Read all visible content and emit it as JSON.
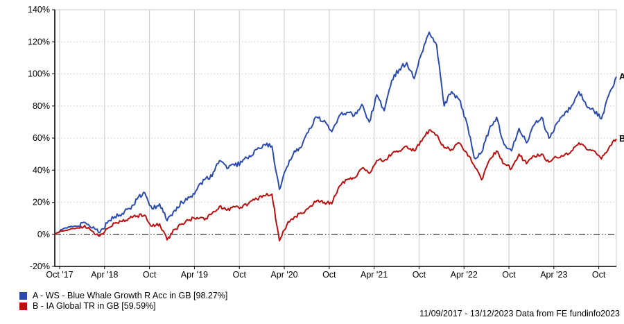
{
  "chart_data": {
    "type": "line",
    "title": "",
    "x_axis": {
      "unit": "months since start",
      "range": [
        0,
        75
      ],
      "start_date": "11/09/2017",
      "end_date": "13/12/2023",
      "ticks": [
        {
          "m": 0.65,
          "label": "Oct '17"
        },
        {
          "m": 6.65,
          "label": "Apr '18"
        },
        {
          "m": 12.65,
          "label": "Oct"
        },
        {
          "m": 18.65,
          "label": "Apr '19"
        },
        {
          "m": 24.65,
          "label": "Oct"
        },
        {
          "m": 30.65,
          "label": "Apr '20"
        },
        {
          "m": 36.65,
          "label": "Oct"
        },
        {
          "m": 42.65,
          "label": "Apr '21"
        },
        {
          "m": 48.65,
          "label": "Oct"
        },
        {
          "m": 54.65,
          "label": "Apr '22"
        },
        {
          "m": 60.65,
          "label": "Oct"
        },
        {
          "m": 66.65,
          "label": "Apr '23"
        },
        {
          "m": 72.65,
          "label": "Oct"
        }
      ]
    },
    "y_axis": {
      "unit": "%",
      "range": [
        -20,
        140
      ],
      "ticks": [
        140,
        120,
        100,
        80,
        60,
        40,
        20,
        0,
        -20
      ],
      "tick_suffix": "%",
      "zero_line": true,
      "grid": "dotted"
    },
    "legend_position": "bottom-left",
    "series": [
      {
        "id": "A",
        "name": "WS - Blue Whale Growth R Acc in GB",
        "final_value_pct": 98.27,
        "color": "#2b4ab0",
        "values": [
          0,
          3,
          4.5,
          5,
          7.5,
          4,
          1,
          7,
          11,
          13,
          16,
          22,
          26,
          16,
          19,
          8.5,
          15,
          20,
          23,
          28,
          34,
          36,
          46,
          41,
          43,
          45,
          49,
          53,
          56,
          55,
          28,
          42,
          52,
          55,
          66,
          73,
          71,
          64,
          74,
          76,
          74,
          81,
          70,
          87,
          77,
          96,
          103,
          107,
          97,
          113,
          126,
          118,
          80,
          89,
          84,
          70,
          48,
          51,
          65,
          73,
          56,
          52,
          66,
          57,
          68,
          73,
          60,
          69,
          74,
          80,
          89,
          80,
          77,
          72,
          87,
          98.27
        ]
      },
      {
        "id": "B",
        "name": "IA Global TR in GB",
        "final_value_pct": 59.59,
        "color": "#bb0f0f",
        "values": [
          0,
          2,
          3,
          4,
          5.5,
          2,
          -1,
          3.5,
          7,
          8,
          10,
          11.5,
          12,
          5,
          6.5,
          -3.5,
          3,
          6.5,
          9,
          10.5,
          9,
          13,
          17.5,
          15,
          17,
          16.5,
          20,
          22,
          24,
          25,
          -4,
          6,
          11,
          13,
          17,
          21,
          20,
          19,
          30,
          34,
          35,
          41,
          38,
          46,
          46,
          50,
          52,
          55,
          52,
          58,
          65,
          62,
          54,
          53,
          57,
          51,
          43,
          34,
          46,
          52,
          44,
          41,
          50,
          44,
          49,
          50,
          45,
          48,
          49,
          52,
          57,
          53,
          52,
          47,
          54,
          59.59
        ]
      }
    ]
  },
  "legend": {
    "items": [
      {
        "label": "A - WS - Blue Whale Growth R Acc in GB [98.27%]",
        "color": "#2b4ab0"
      },
      {
        "label": "B - IA Global TR in GB [59.59%]",
        "color": "#bb0f0f"
      }
    ]
  },
  "end_labels": {
    "a": "A",
    "b": "B"
  },
  "footer": {
    "text": "11/09/2017 - 13/12/2023 Data from FE fundinfo2023"
  }
}
